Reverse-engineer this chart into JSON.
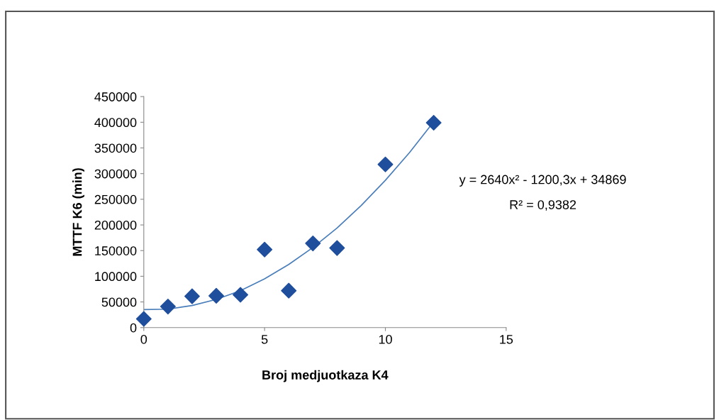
{
  "chart_data": {
    "type": "scatter",
    "xlabel": "Broj medjuotkaza K4",
    "ylabel": "MTTF K6 (min)",
    "xlim": [
      0,
      15
    ],
    "xticks": [
      0,
      5,
      10,
      15
    ],
    "ylim": [
      0,
      450000
    ],
    "yticks": [
      0,
      50000,
      100000,
      150000,
      200000,
      250000,
      300000,
      350000,
      400000,
      450000
    ],
    "grid": false,
    "legend": false,
    "marker": "diamond",
    "series": [
      {
        "color": "#1f4e9c",
        "x": [
          0,
          1,
          2,
          3,
          4,
          5,
          6,
          7,
          8,
          10,
          12
        ],
        "values": [
          17000,
          41000,
          61000,
          62000,
          64000,
          152000,
          72000,
          164000,
          155000,
          318000,
          399000
        ]
      },
      {
        "type": "line",
        "color": "#4a7ebb",
        "marker": "none",
        "x": [
          0,
          1,
          2,
          3,
          4,
          5,
          6,
          7,
          8,
          9,
          10,
          11,
          12
        ],
        "values": [
          35000,
          36000,
          43000,
          55000,
          72000,
          95000,
          123000,
          156000,
          194000,
          238000,
          287000,
          341000,
          401000
        ]
      }
    ],
    "annotations": [
      "y = 2640x² - 1200,3x + 34869",
      "R² = 0,9382"
    ]
  }
}
